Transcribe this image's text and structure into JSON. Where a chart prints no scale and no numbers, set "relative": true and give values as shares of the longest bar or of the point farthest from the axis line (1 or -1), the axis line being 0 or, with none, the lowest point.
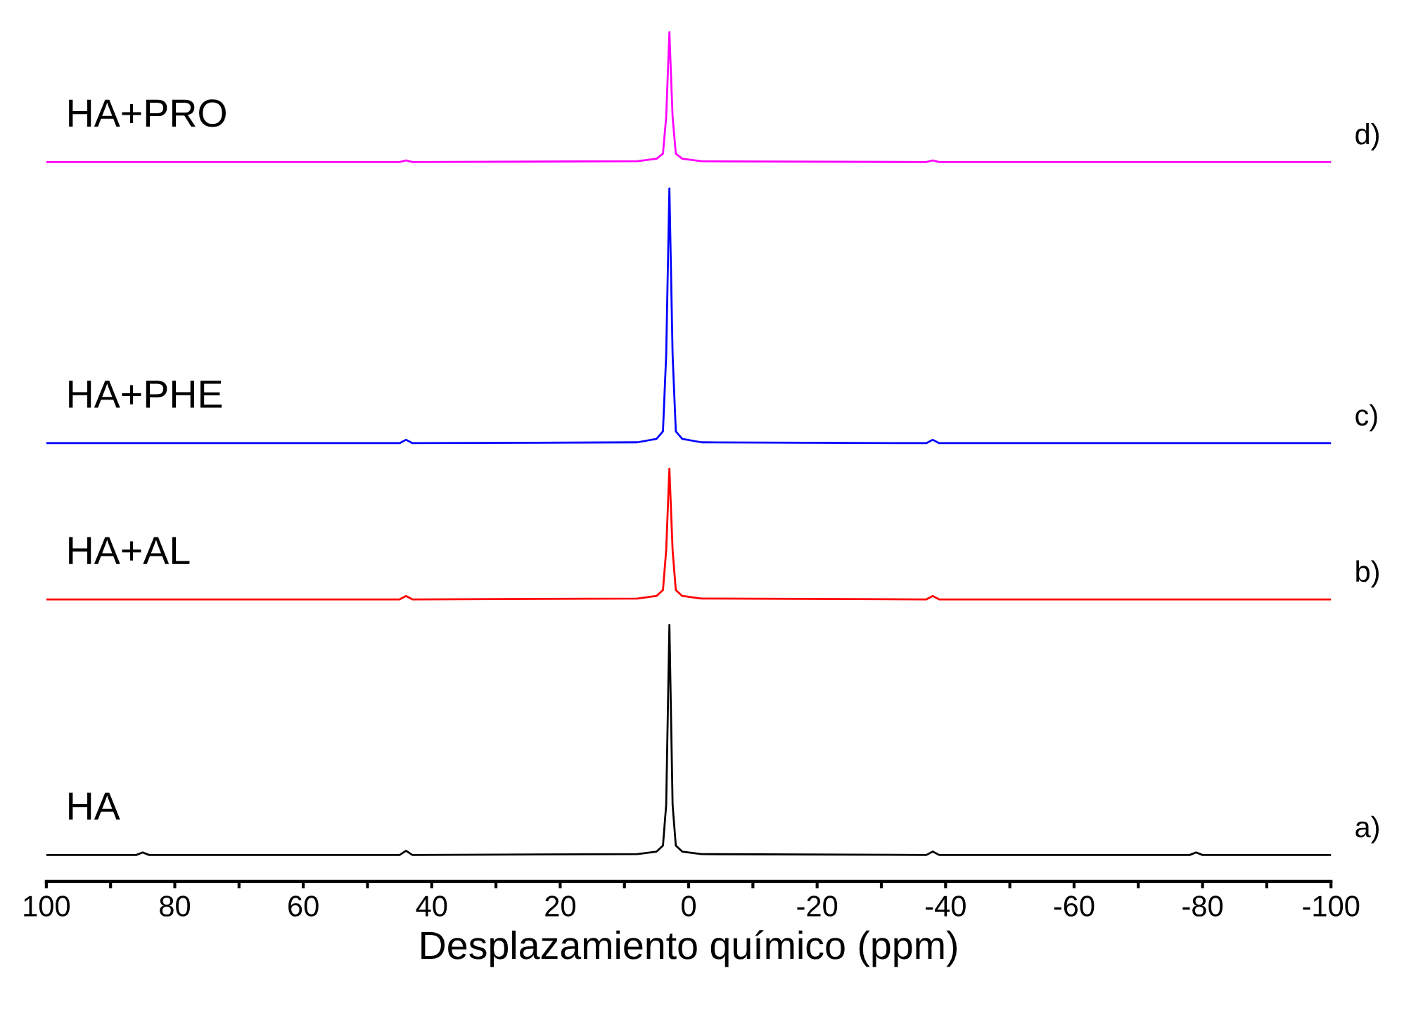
{
  "chart_data": {
    "type": "line",
    "relative": true,
    "xlabel": "Desplazamiento químico (ppm)",
    "xlim": [
      100,
      -100
    ],
    "xticks": [
      100,
      {
        "value": 90,
        "label": null
      },
      80,
      {
        "value": 70,
        "label": null
      },
      60,
      {
        "value": 50,
        "label": null
      },
      40,
      {
        "value": 30,
        "label": null
      },
      20,
      {
        "value": 10,
        "label": null
      },
      0,
      {
        "value": -10,
        "label": null
      },
      -20,
      {
        "value": -30,
        "label": null
      },
      -40,
      {
        "value": -50,
        "label": null
      },
      -60,
      {
        "value": -70,
        "label": null
      },
      -80,
      {
        "value": -90,
        "label": null
      },
      -100
    ],
    "x": [
      100,
      86,
      85,
      84,
      45,
      44,
      43,
      8,
      5,
      4,
      3.5,
      3,
      2.5,
      2,
      1,
      -2,
      -37,
      -38,
      -39,
      -78,
      -79,
      -80,
      -100
    ],
    "grid": false,
    "legend": false,
    "marker": "none",
    "line_style": "solid",
    "series": [
      {
        "name": "HA",
        "color": "#000000",
        "values": [
          0.031,
          0.031,
          0.034,
          0.031,
          0.031,
          0.036,
          0.031,
          0.032,
          0.035,
          0.042,
          0.09,
          0.302,
          0.09,
          0.042,
          0.035,
          0.032,
          0.031,
          0.035,
          0.031,
          0.031,
          0.034,
          0.031,
          0.031
        ]
      },
      {
        "name": "HA+AL",
        "color": "#ff0000",
        "values": [
          0.332,
          0.332,
          0.332,
          0.332,
          0.332,
          0.336,
          0.332,
          0.333,
          0.336,
          0.343,
          0.39,
          0.486,
          0.39,
          0.343,
          0.336,
          0.333,
          0.332,
          0.336,
          0.332,
          0.332,
          0.332,
          0.332,
          0.332
        ]
      },
      {
        "name": "HA+PHE",
        "color": "#0000ff",
        "values": [
          0.516,
          0.516,
          0.516,
          0.516,
          0.516,
          0.52,
          0.516,
          0.517,
          0.521,
          0.53,
          0.62,
          0.816,
          0.62,
          0.53,
          0.521,
          0.517,
          0.516,
          0.52,
          0.516,
          0.516,
          0.516,
          0.516,
          0.516
        ]
      },
      {
        "name": "HA+PRO",
        "color": "#ff00ff",
        "values": [
          0.847,
          0.847,
          0.847,
          0.847,
          0.847,
          0.849,
          0.847,
          0.848,
          0.851,
          0.857,
          0.9,
          1.0,
          0.9,
          0.857,
          0.851,
          0.848,
          0.847,
          0.849,
          0.847,
          0.847,
          0.847,
          0.847,
          0.847
        ]
      }
    ],
    "annotations": [
      "a)",
      "b)",
      "c)",
      "d)"
    ]
  }
}
